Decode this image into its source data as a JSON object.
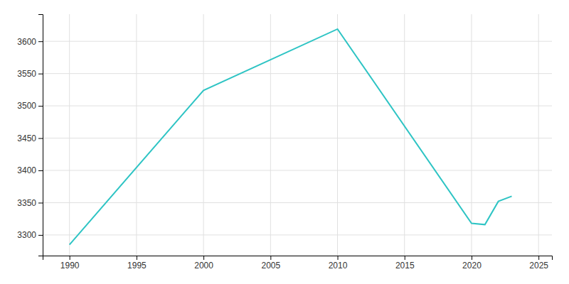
{
  "chart_data": {
    "type": "line",
    "x": [
      1990,
      2000,
      2010,
      2020,
      2021,
      2022,
      2023
    ],
    "values": [
      3285,
      3524,
      3619,
      3318,
      3316,
      3352,
      3360
    ],
    "color": "#2ec4c4",
    "xlim": [
      1988,
      2026
    ],
    "ylim": [
      3268,
      3642
    ],
    "xticks": [
      1990,
      1995,
      2000,
      2005,
      2010,
      2015,
      2020,
      2025
    ],
    "yticks": [
      3300,
      3350,
      3400,
      3450,
      3500,
      3550,
      3600
    ],
    "grid": true
  }
}
